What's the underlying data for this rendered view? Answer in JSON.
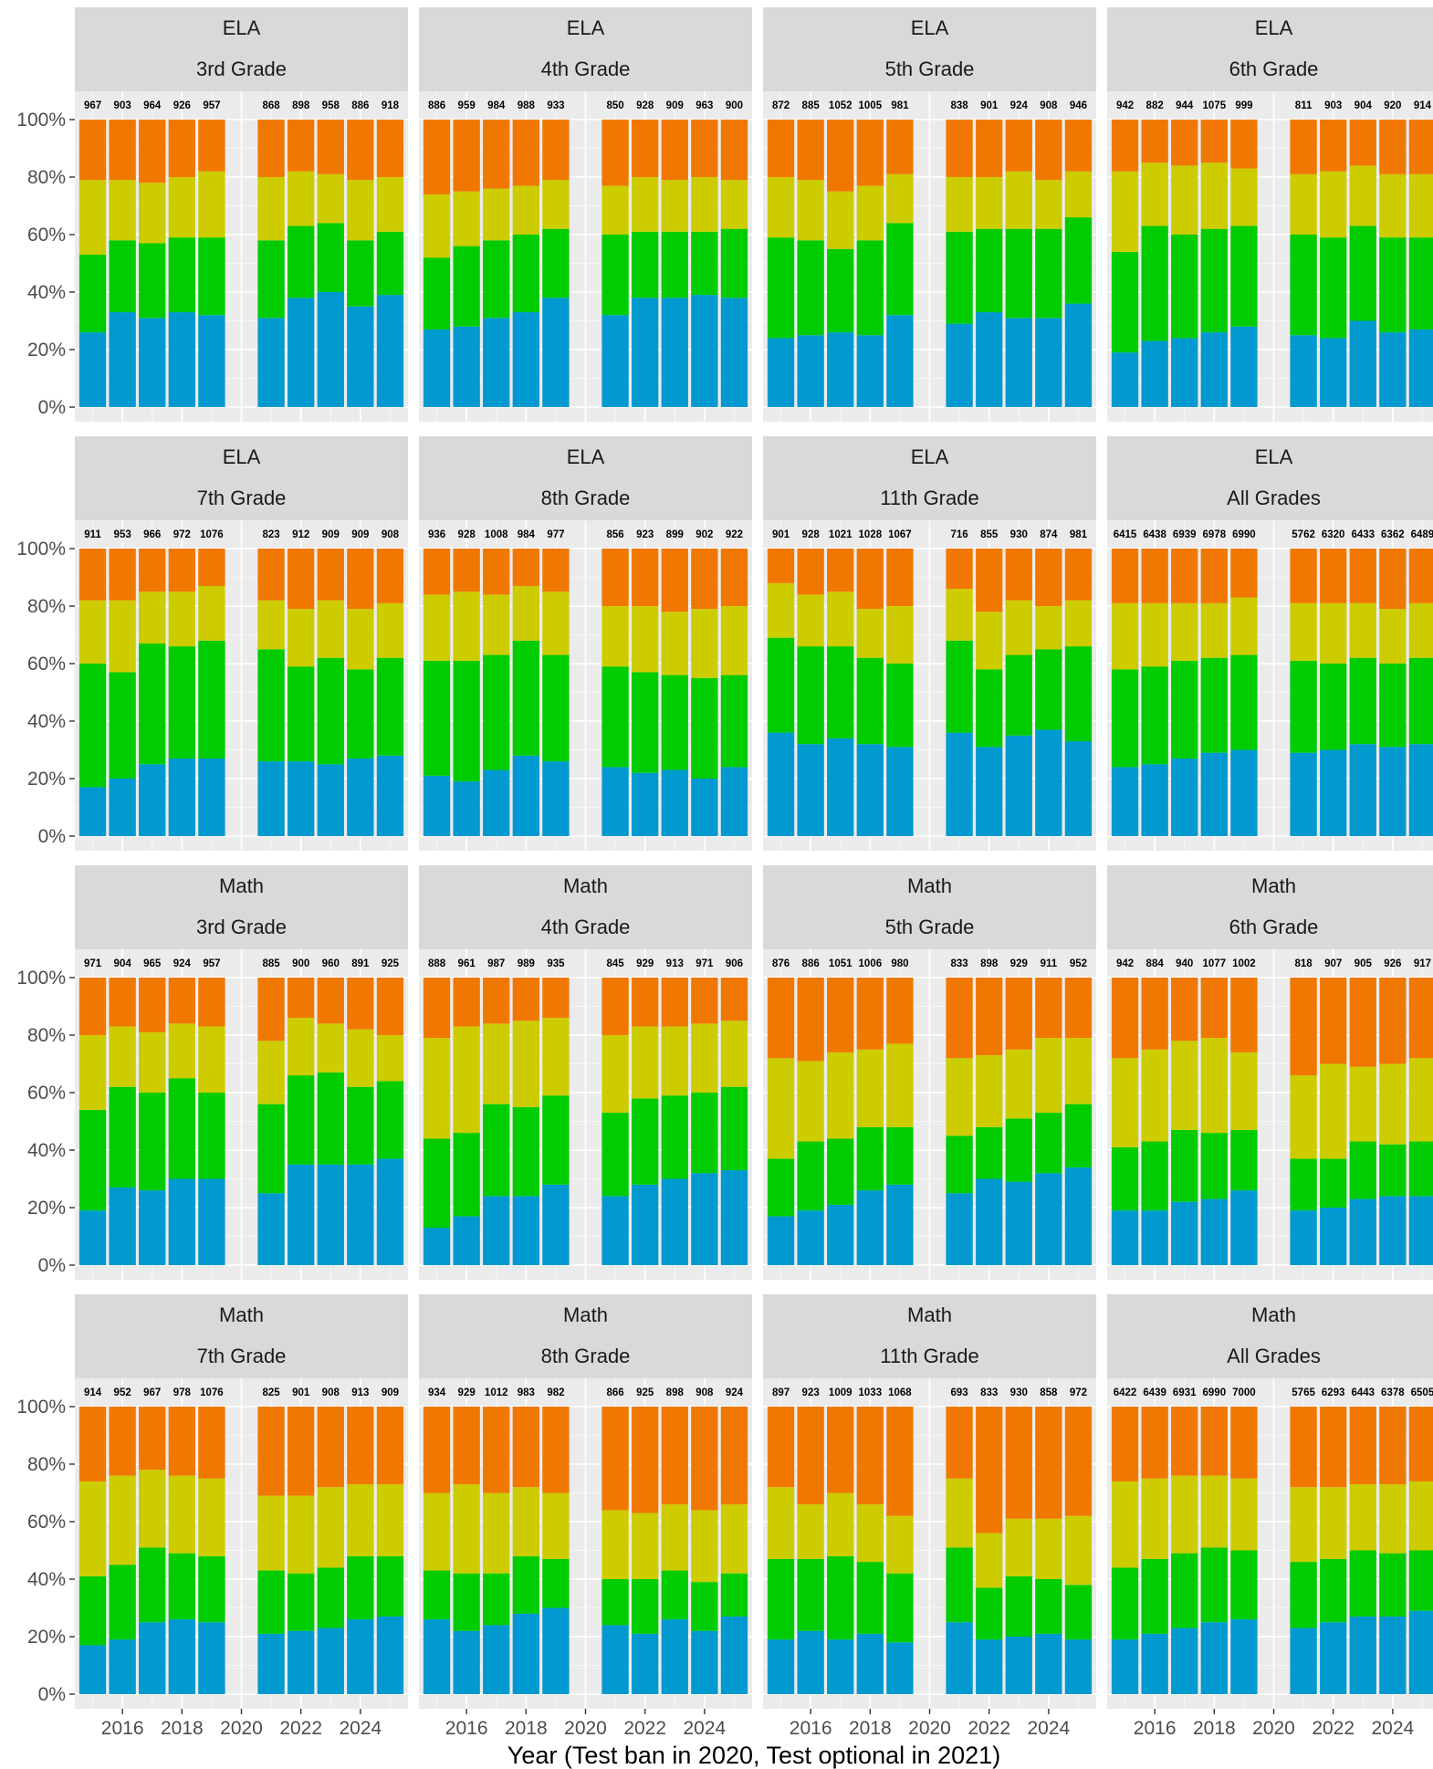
{
  "chart_data": {
    "type": "bar",
    "stacked": true,
    "percent": true,
    "xlabel": "Year (Test ban in 2020, Test optional in 2021)",
    "ylabel": "",
    "ylim": [
      0,
      1
    ],
    "y_ticks": [
      "0%",
      "20%",
      "40%",
      "60%",
      "80%",
      "100%"
    ],
    "x_ticks": [
      "2016",
      "2018",
      "2020",
      "2022",
      "2024"
    ],
    "years": [
      2015,
      2016,
      2017,
      2018,
      2019,
      2021,
      2022,
      2023,
      2024,
      2025
    ],
    "level_colors": [
      "#0099d0",
      "#00cc00",
      "#cccc00",
      "#f07800"
    ],
    "panels": [
      {
        "subject": "ELA",
        "grade": "3rd Grade",
        "counts": [
          "967",
          "903",
          "964",
          "926",
          "957",
          "868",
          "898",
          "958",
          "886",
          "918"
        ],
        "cum": [
          [
            0.26,
            0.53,
            0.79
          ],
          [
            0.33,
            0.58,
            0.79
          ],
          [
            0.31,
            0.57,
            0.78
          ],
          [
            0.33,
            0.59,
            0.8
          ],
          [
            0.32,
            0.59,
            0.82
          ],
          [
            0.31,
            0.58,
            0.8
          ],
          [
            0.38,
            0.63,
            0.82
          ],
          [
            0.4,
            0.64,
            0.81
          ],
          [
            0.35,
            0.58,
            0.79
          ],
          [
            0.39,
            0.61,
            0.8
          ]
        ]
      },
      {
        "subject": "ELA",
        "grade": "4th Grade",
        "counts": [
          "886",
          "959",
          "984",
          "988",
          "933",
          "850",
          "928",
          "909",
          "963",
          "900"
        ],
        "cum": [
          [
            0.27,
            0.52,
            0.74
          ],
          [
            0.28,
            0.56,
            0.75
          ],
          [
            0.31,
            0.58,
            0.76
          ],
          [
            0.33,
            0.6,
            0.77
          ],
          [
            0.38,
            0.62,
            0.79
          ],
          [
            0.32,
            0.6,
            0.77
          ],
          [
            0.38,
            0.61,
            0.8
          ],
          [
            0.38,
            0.61,
            0.79
          ],
          [
            0.39,
            0.61,
            0.8
          ],
          [
            0.38,
            0.62,
            0.79
          ]
        ]
      },
      {
        "subject": "ELA",
        "grade": "5th Grade",
        "counts": [
          "872",
          "885",
          "1052",
          "1005",
          "981",
          "838",
          "901",
          "924",
          "908",
          "946"
        ],
        "cum": [
          [
            0.24,
            0.59,
            0.8
          ],
          [
            0.25,
            0.58,
            0.79
          ],
          [
            0.26,
            0.55,
            0.75
          ],
          [
            0.25,
            0.58,
            0.77
          ],
          [
            0.32,
            0.64,
            0.81
          ],
          [
            0.29,
            0.61,
            0.8
          ],
          [
            0.33,
            0.62,
            0.8
          ],
          [
            0.31,
            0.62,
            0.82
          ],
          [
            0.31,
            0.62,
            0.79
          ],
          [
            0.36,
            0.66,
            0.82
          ]
        ]
      },
      {
        "subject": "ELA",
        "grade": "6th Grade",
        "counts": [
          "942",
          "882",
          "944",
          "1075",
          "999",
          "811",
          "903",
          "904",
          "920",
          "914"
        ],
        "cum": [
          [
            0.19,
            0.54,
            0.82
          ],
          [
            0.23,
            0.63,
            0.85
          ],
          [
            0.24,
            0.6,
            0.84
          ],
          [
            0.26,
            0.62,
            0.85
          ],
          [
            0.28,
            0.63,
            0.83
          ],
          [
            0.25,
            0.6,
            0.81
          ],
          [
            0.24,
            0.59,
            0.82
          ],
          [
            0.3,
            0.63,
            0.84
          ],
          [
            0.26,
            0.59,
            0.81
          ],
          [
            0.27,
            0.59,
            0.81
          ]
        ]
      },
      {
        "subject": "ELA",
        "grade": "7th Grade",
        "counts": [
          "911",
          "953",
          "966",
          "972",
          "1076",
          "823",
          "912",
          "909",
          "909",
          "908"
        ],
        "cum": [
          [
            0.17,
            0.6,
            0.82
          ],
          [
            0.2,
            0.57,
            0.82
          ],
          [
            0.25,
            0.67,
            0.85
          ],
          [
            0.27,
            0.66,
            0.85
          ],
          [
            0.27,
            0.68,
            0.87
          ],
          [
            0.26,
            0.65,
            0.82
          ],
          [
            0.26,
            0.59,
            0.79
          ],
          [
            0.25,
            0.62,
            0.82
          ],
          [
            0.27,
            0.58,
            0.79
          ],
          [
            0.28,
            0.62,
            0.81
          ]
        ]
      },
      {
        "subject": "ELA",
        "grade": "8th Grade",
        "counts": [
          "936",
          "928",
          "1008",
          "984",
          "977",
          "856",
          "923",
          "899",
          "902",
          "922"
        ],
        "cum": [
          [
            0.21,
            0.61,
            0.84
          ],
          [
            0.19,
            0.61,
            0.85
          ],
          [
            0.23,
            0.63,
            0.84
          ],
          [
            0.28,
            0.68,
            0.87
          ],
          [
            0.26,
            0.63,
            0.85
          ],
          [
            0.24,
            0.59,
            0.8
          ],
          [
            0.22,
            0.57,
            0.8
          ],
          [
            0.23,
            0.56,
            0.78
          ],
          [
            0.2,
            0.55,
            0.79
          ],
          [
            0.24,
            0.56,
            0.8
          ]
        ]
      },
      {
        "subject": "ELA",
        "grade": "11th Grade",
        "counts": [
          "901",
          "928",
          "1021",
          "1028",
          "1067",
          "716",
          "855",
          "930",
          "874",
          "981"
        ],
        "cum": [
          [
            0.36,
            0.69,
            0.88
          ],
          [
            0.32,
            0.66,
            0.84
          ],
          [
            0.34,
            0.66,
            0.85
          ],
          [
            0.32,
            0.62,
            0.79
          ],
          [
            0.31,
            0.6,
            0.8
          ],
          [
            0.36,
            0.68,
            0.86
          ],
          [
            0.31,
            0.58,
            0.78
          ],
          [
            0.35,
            0.63,
            0.82
          ],
          [
            0.37,
            0.65,
            0.8
          ],
          [
            0.33,
            0.66,
            0.82
          ]
        ]
      },
      {
        "subject": "ELA",
        "grade": "All Grades",
        "counts": [
          "6415",
          "6438",
          "6939",
          "6978",
          "6990",
          "5762",
          "6320",
          "6433",
          "6362",
          "6489"
        ],
        "cum": [
          [
            0.24,
            0.58,
            0.81
          ],
          [
            0.25,
            0.59,
            0.81
          ],
          [
            0.27,
            0.61,
            0.81
          ],
          [
            0.29,
            0.62,
            0.81
          ],
          [
            0.3,
            0.63,
            0.83
          ],
          [
            0.29,
            0.61,
            0.81
          ],
          [
            0.3,
            0.6,
            0.81
          ],
          [
            0.32,
            0.62,
            0.81
          ],
          [
            0.31,
            0.6,
            0.79
          ],
          [
            0.32,
            0.62,
            0.81
          ]
        ]
      },
      {
        "subject": "Math",
        "grade": "3rd Grade",
        "counts": [
          "971",
          "904",
          "965",
          "924",
          "957",
          "885",
          "900",
          "960",
          "891",
          "925"
        ],
        "cum": [
          [
            0.19,
            0.54,
            0.8
          ],
          [
            0.27,
            0.62,
            0.83
          ],
          [
            0.26,
            0.6,
            0.81
          ],
          [
            0.3,
            0.65,
            0.84
          ],
          [
            0.3,
            0.6,
            0.83
          ],
          [
            0.25,
            0.56,
            0.78
          ],
          [
            0.35,
            0.66,
            0.86
          ],
          [
            0.35,
            0.67,
            0.84
          ],
          [
            0.35,
            0.62,
            0.82
          ],
          [
            0.37,
            0.64,
            0.8
          ]
        ]
      },
      {
        "subject": "Math",
        "grade": "4th Grade",
        "counts": [
          "888",
          "961",
          "987",
          "989",
          "935",
          "845",
          "929",
          "913",
          "971",
          "906"
        ],
        "cum": [
          [
            0.13,
            0.44,
            0.79
          ],
          [
            0.17,
            0.46,
            0.83
          ],
          [
            0.24,
            0.56,
            0.84
          ],
          [
            0.24,
            0.55,
            0.85
          ],
          [
            0.28,
            0.59,
            0.86
          ],
          [
            0.24,
            0.53,
            0.8
          ],
          [
            0.28,
            0.58,
            0.83
          ],
          [
            0.3,
            0.59,
            0.83
          ],
          [
            0.32,
            0.6,
            0.84
          ],
          [
            0.33,
            0.62,
            0.85
          ]
        ]
      },
      {
        "subject": "Math",
        "grade": "5th Grade",
        "counts": [
          "876",
          "886",
          "1051",
          "1006",
          "980",
          "833",
          "898",
          "929",
          "911",
          "952"
        ],
        "cum": [
          [
            0.17,
            0.37,
            0.72
          ],
          [
            0.19,
            0.43,
            0.71
          ],
          [
            0.21,
            0.44,
            0.74
          ],
          [
            0.26,
            0.48,
            0.75
          ],
          [
            0.28,
            0.48,
            0.77
          ],
          [
            0.25,
            0.45,
            0.72
          ],
          [
            0.3,
            0.48,
            0.73
          ],
          [
            0.29,
            0.51,
            0.75
          ],
          [
            0.32,
            0.53,
            0.79
          ],
          [
            0.34,
            0.56,
            0.79
          ]
        ]
      },
      {
        "subject": "Math",
        "grade": "6th Grade",
        "counts": [
          "942",
          "884",
          "940",
          "1077",
          "1002",
          "818",
          "907",
          "905",
          "926",
          "917"
        ],
        "cum": [
          [
            0.19,
            0.41,
            0.72
          ],
          [
            0.19,
            0.43,
            0.75
          ],
          [
            0.22,
            0.47,
            0.78
          ],
          [
            0.23,
            0.46,
            0.79
          ],
          [
            0.26,
            0.47,
            0.74
          ],
          [
            0.19,
            0.37,
            0.66
          ],
          [
            0.2,
            0.37,
            0.7
          ],
          [
            0.23,
            0.43,
            0.69
          ],
          [
            0.24,
            0.42,
            0.7
          ],
          [
            0.24,
            0.43,
            0.72
          ]
        ]
      },
      {
        "subject": "Math",
        "grade": "7th Grade",
        "counts": [
          "914",
          "952",
          "967",
          "978",
          "1076",
          "825",
          "901",
          "908",
          "913",
          "909"
        ],
        "cum": [
          [
            0.17,
            0.41,
            0.74
          ],
          [
            0.19,
            0.45,
            0.76
          ],
          [
            0.25,
            0.51,
            0.78
          ],
          [
            0.26,
            0.49,
            0.76
          ],
          [
            0.25,
            0.48,
            0.75
          ],
          [
            0.21,
            0.43,
            0.69
          ],
          [
            0.22,
            0.42,
            0.69
          ],
          [
            0.23,
            0.44,
            0.72
          ],
          [
            0.26,
            0.48,
            0.73
          ],
          [
            0.27,
            0.48,
            0.73
          ]
        ]
      },
      {
        "subject": "Math",
        "grade": "8th Grade",
        "counts": [
          "934",
          "929",
          "1012",
          "983",
          "982",
          "866",
          "925",
          "898",
          "908",
          "924"
        ],
        "cum": [
          [
            0.26,
            0.43,
            0.7
          ],
          [
            0.22,
            0.42,
            0.73
          ],
          [
            0.24,
            0.42,
            0.7
          ],
          [
            0.28,
            0.48,
            0.72
          ],
          [
            0.3,
            0.47,
            0.7
          ],
          [
            0.24,
            0.4,
            0.64
          ],
          [
            0.21,
            0.4,
            0.63
          ],
          [
            0.26,
            0.43,
            0.66
          ],
          [
            0.22,
            0.39,
            0.64
          ],
          [
            0.27,
            0.42,
            0.66
          ]
        ]
      },
      {
        "subject": "Math",
        "grade": "11th Grade",
        "counts": [
          "897",
          "923",
          "1009",
          "1033",
          "1068",
          "693",
          "833",
          "930",
          "858",
          "972"
        ],
        "cum": [
          [
            0.19,
            0.47,
            0.72
          ],
          [
            0.22,
            0.47,
            0.66
          ],
          [
            0.19,
            0.48,
            0.7
          ],
          [
            0.21,
            0.46,
            0.66
          ],
          [
            0.18,
            0.42,
            0.62
          ],
          [
            0.25,
            0.51,
            0.75
          ],
          [
            0.19,
            0.37,
            0.56
          ],
          [
            0.2,
            0.41,
            0.61
          ],
          [
            0.21,
            0.4,
            0.61
          ],
          [
            0.19,
            0.38,
            0.62
          ]
        ]
      },
      {
        "subject": "Math",
        "grade": "All Grades",
        "counts": [
          "6422",
          "6439",
          "6931",
          "6990",
          "7000",
          "5765",
          "6293",
          "6443",
          "6378",
          "6505"
        ],
        "cum": [
          [
            0.19,
            0.44,
            0.74
          ],
          [
            0.21,
            0.47,
            0.75
          ],
          [
            0.23,
            0.49,
            0.76
          ],
          [
            0.25,
            0.51,
            0.76
          ],
          [
            0.26,
            0.5,
            0.75
          ],
          [
            0.23,
            0.46,
            0.72
          ],
          [
            0.25,
            0.47,
            0.72
          ],
          [
            0.27,
            0.5,
            0.73
          ],
          [
            0.27,
            0.49,
            0.73
          ],
          [
            0.29,
            0.5,
            0.74
          ]
        ]
      }
    ]
  }
}
